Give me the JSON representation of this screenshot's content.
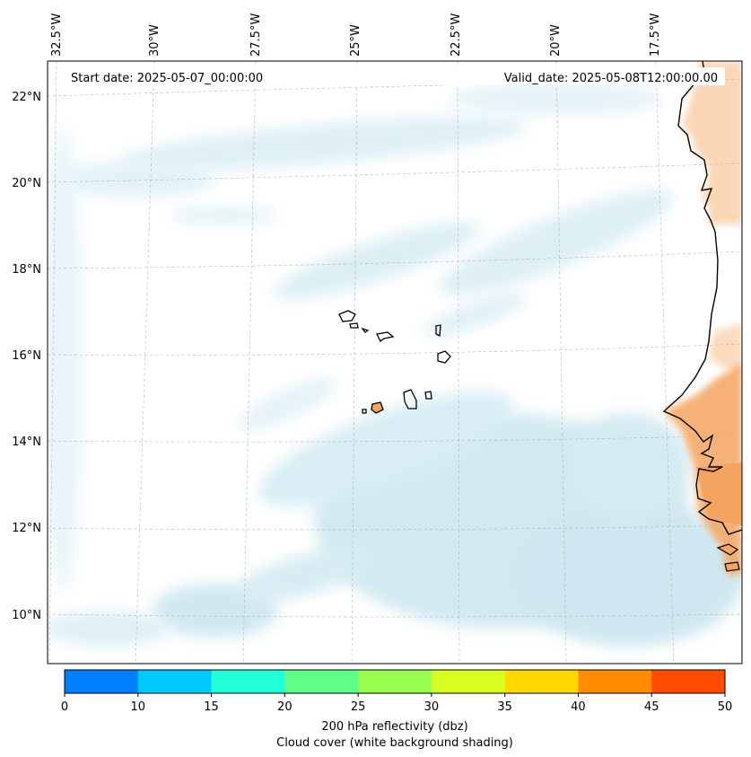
{
  "header": {
    "start_date": "Start date: 2025-05-07_00:00:00",
    "valid_date": "Valid_date: 2025-05-08T12:00:00.00"
  },
  "map": {
    "lon_labels": [
      {
        "lon": -32.5,
        "text": "32.5°W"
      },
      {
        "lon": -30,
        "text": "30°W"
      },
      {
        "lon": -27.5,
        "text": "27.5°W"
      },
      {
        "lon": -25,
        "text": "25°W"
      },
      {
        "lon": -22.5,
        "text": "22.5°W"
      },
      {
        "lon": -20,
        "text": "20°W"
      },
      {
        "lon": -17.5,
        "text": "17.5°W"
      }
    ],
    "lat_labels": [
      {
        "lat": 22,
        "text": "22°N"
      },
      {
        "lat": 20,
        "text": "20°N"
      },
      {
        "lat": 18,
        "text": "18°N"
      },
      {
        "lat": 16,
        "text": "16°N"
      },
      {
        "lat": 14,
        "text": "14°N"
      },
      {
        "lat": 12,
        "text": "12°N"
      },
      {
        "lat": 10,
        "text": "10°N"
      }
    ],
    "colors": {
      "cloud": "#add8e6",
      "land_heat": "#f4a460",
      "coastline": "#000000",
      "gridline": "#b0b0b0"
    }
  },
  "colorbar": {
    "ticks": [
      "0",
      "10",
      "15",
      "20",
      "25",
      "30",
      "35",
      "40",
      "45",
      "50"
    ],
    "colors": [
      "#0080ff",
      "#00c8ff",
      "#20ffd8",
      "#60ff88",
      "#98ff50",
      "#d8ff20",
      "#ffd800",
      "#ff8c00",
      "#ff4c00"
    ],
    "label_line1": "200 hPa reflectivity (dbz)",
    "label_line2": "Cloud cover (white background shading)"
  }
}
